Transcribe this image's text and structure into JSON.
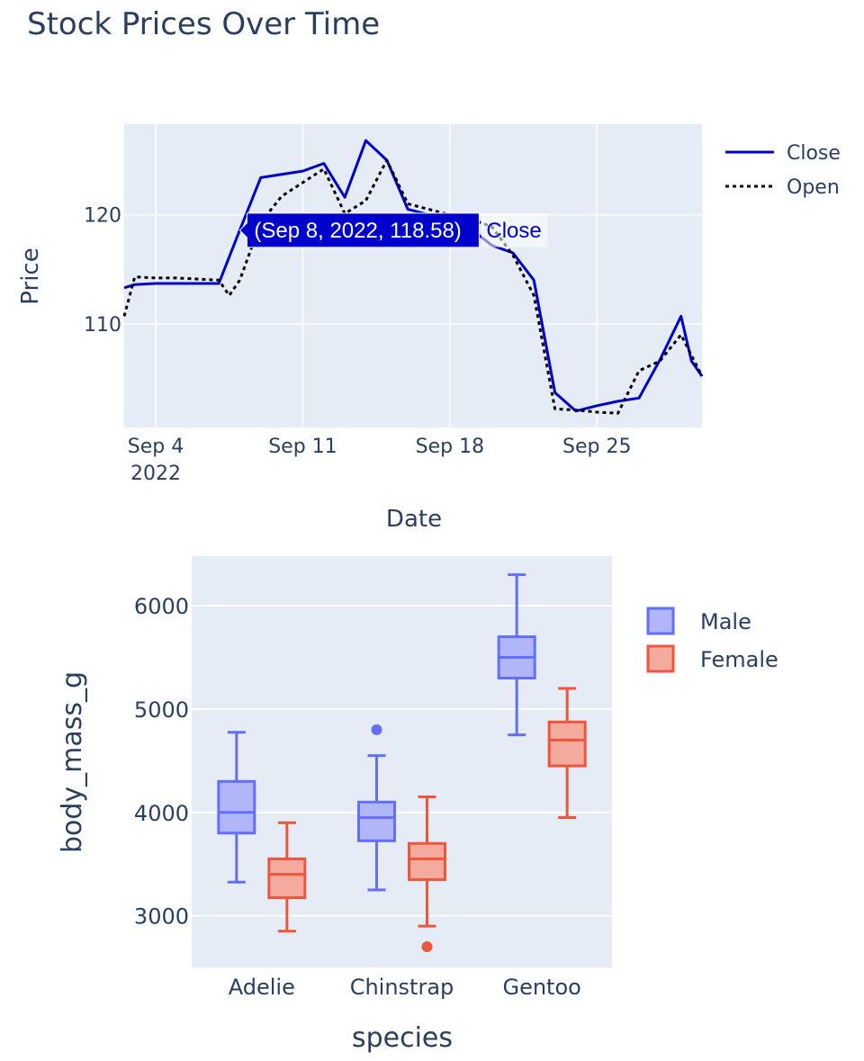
{
  "chart_data": [
    {
      "type": "line",
      "title": "Stock Prices Over Time",
      "xlabel": "Date",
      "ylabel": "Price",
      "x_tick_labels": [
        "Sep 4",
        "Sep 11",
        "Sep 18",
        "Sep 25"
      ],
      "x_tick_sublabel": "2022",
      "y_tick_labels": [
        "110",
        "120"
      ],
      "xlim": [
        "2022-09-02T12:00",
        "2022-09-30"
      ],
      "ylim": [
        100.5,
        128.3
      ],
      "grid": true,
      "legend_position": "top-right",
      "series": [
        {
          "name": "Close",
          "color": "#0000cc",
          "dash": "solid",
          "points": [
            [
              "2022-09-02T12:00",
              113.3
            ],
            [
              "2022-09-03",
              113.6
            ],
            [
              "2022-09-04",
              113.7
            ],
            [
              "2022-09-05",
              113.7
            ],
            [
              "2022-09-06",
              113.7
            ],
            [
              "2022-09-07",
              113.7
            ],
            [
              "2022-09-08",
              118.58
            ],
            [
              "2022-09-09",
              123.4
            ],
            [
              "2022-09-11",
              124.0
            ],
            [
              "2022-09-12",
              124.7
            ],
            [
              "2022-09-13",
              121.6
            ],
            [
              "2022-09-14",
              126.8
            ],
            [
              "2022-09-15",
              125.0
            ],
            [
              "2022-09-16",
              120.5
            ],
            [
              "2022-09-17",
              120.0
            ],
            [
              "2022-09-18",
              119.3
            ],
            [
              "2022-09-19",
              118.7
            ],
            [
              "2022-09-20",
              117.2
            ],
            [
              "2022-09-21",
              116.5
            ],
            [
              "2022-09-22",
              114.0
            ],
            [
              "2022-09-23",
              103.7
            ],
            [
              "2022-09-24",
              102.0
            ],
            [
              "2022-09-25",
              102.5
            ],
            [
              "2022-09-26",
              102.9
            ],
            [
              "2022-09-27",
              103.2
            ],
            [
              "2022-09-28",
              106.7
            ],
            [
              "2022-09-29",
              110.7
            ],
            [
              "2022-09-29T12:00",
              106.6
            ],
            [
              "2022-09-30",
              105.2
            ]
          ]
        },
        {
          "name": "Open",
          "color": "#000000",
          "dash": "dot",
          "points": [
            [
              "2022-09-02T12:00",
              110.7
            ],
            [
              "2022-09-03",
              114.3
            ],
            [
              "2022-09-04",
              114.2
            ],
            [
              "2022-09-05",
              114.2
            ],
            [
              "2022-09-06",
              114.1
            ],
            [
              "2022-09-07",
              114.0
            ],
            [
              "2022-09-07T12:00",
              112.6
            ],
            [
              "2022-09-08",
              114.0
            ],
            [
              "2022-09-09",
              119.3
            ],
            [
              "2022-09-10",
              121.7
            ],
            [
              "2022-09-12",
              124.2
            ],
            [
              "2022-09-13",
              120.1
            ],
            [
              "2022-09-14",
              121.3
            ],
            [
              "2022-09-15",
              125.0
            ],
            [
              "2022-09-16",
              121.0
            ],
            [
              "2022-09-17",
              120.5
            ],
            [
              "2022-09-18",
              120.0
            ],
            [
              "2022-09-19",
              119.6
            ],
            [
              "2022-09-20",
              118.9
            ],
            [
              "2022-09-21",
              116.3
            ],
            [
              "2022-09-22",
              112.6
            ],
            [
              "2022-09-23",
              102.2
            ],
            [
              "2022-09-24",
              102.1
            ],
            [
              "2022-09-25",
              101.9
            ],
            [
              "2022-09-26",
              101.8
            ],
            [
              "2022-09-27",
              105.7
            ],
            [
              "2022-09-28",
              106.6
            ],
            [
              "2022-09-29",
              109.0
            ],
            [
              "2022-09-30",
              105.2
            ]
          ]
        }
      ],
      "hover": {
        "series": "Close",
        "x": "2022-09-08",
        "y": 118.58,
        "text": "(Sep 8, 2022, 118.58)",
        "name": "Close",
        "color": "#0000cc"
      }
    },
    {
      "type": "box",
      "xlabel": "species",
      "ylabel": "body_mass_g",
      "categories": [
        "Adelie",
        "Chinstrap",
        "Gentoo"
      ],
      "y_tick_labels": [
        "3000",
        "4000",
        "5000",
        "6000"
      ],
      "ylim": [
        2500,
        6480
      ],
      "grid": true,
      "legend_position": "top-right",
      "series": [
        {
          "name": "Male",
          "color": "#636efa",
          "fill": "#b1b6f8",
          "boxes": [
            {
              "category": "Adelie",
              "lower_whisker": 3325,
              "q1": 3800,
              "median": 4000,
              "q3": 4300,
              "upper_whisker": 4775,
              "outliers": []
            },
            {
              "category": "Chinstrap",
              "lower_whisker": 3250,
              "q1": 3725,
              "median": 3950,
              "q3": 4100,
              "upper_whisker": 4550,
              "outliers": [
                4800
              ]
            },
            {
              "category": "Gentoo",
              "lower_whisker": 4750,
              "q1": 5300,
              "median": 5500,
              "q3": 5700,
              "upper_whisker": 6300,
              "outliers": []
            }
          ]
        },
        {
          "name": "Female",
          "color": "#ef553b",
          "fill": "#f4ab9d",
          "boxes": [
            {
              "category": "Adelie",
              "lower_whisker": 2850,
              "q1": 3175,
              "median": 3400,
              "q3": 3550,
              "upper_whisker": 3900,
              "outliers": []
            },
            {
              "category": "Chinstrap",
              "lower_whisker": 2900,
              "q1": 3350,
              "median": 3550,
              "q3": 3700,
              "upper_whisker": 4150,
              "outliers": [
                2700
              ]
            },
            {
              "category": "Gentoo",
              "lower_whisker": 3950,
              "q1": 4450,
              "median": 4700,
              "q3": 4875,
              "upper_whisker": 5200,
              "outliers": []
            }
          ]
        }
      ]
    }
  ]
}
